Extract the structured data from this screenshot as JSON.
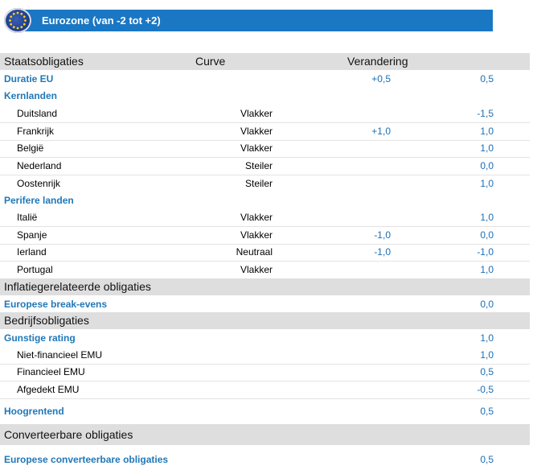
{
  "header": {
    "title": "Eurozone (van -2 tot +2)"
  },
  "columns": {
    "segment": "Staatsobligaties",
    "curve": "Curve",
    "change": "Verandering"
  },
  "rows": {
    "duratie": {
      "name": "Duratie EU",
      "change": "+0,5",
      "value": "0,5"
    },
    "kernlanden": {
      "name": "Kernlanden"
    },
    "duitsland": {
      "name": "Duitsland",
      "curve": "Vlakker",
      "value": "-1,5"
    },
    "frankrijk": {
      "name": "Frankrijk",
      "curve": "Vlakker",
      "change": "+1,0",
      "value": "1,0"
    },
    "belgie": {
      "name": "België",
      "curve": "Vlakker",
      "value": "1,0"
    },
    "nederland": {
      "name": "Nederland",
      "curve": "Steiler",
      "value": "0,0"
    },
    "oostenrijk": {
      "name": "Oostenrijk",
      "curve": "Steiler",
      "value": "1,0"
    },
    "perifere": {
      "name": "Perifere landen"
    },
    "italie": {
      "name": "Italië",
      "curve": "Vlakker",
      "value": "1,0"
    },
    "spanje": {
      "name": "Spanje",
      "curve": "Vlakker",
      "change": "-1,0",
      "value": "0,0"
    },
    "ierland": {
      "name": "Ierland",
      "curve": "Neutraal",
      "change": "-1,0",
      "value": "-1,0"
    },
    "portugal": {
      "name": "Portugal",
      "curve": "Vlakker",
      "value": "1,0"
    },
    "inflatie": {
      "name": "Inflatiegerelateerde obligaties"
    },
    "breakevens": {
      "name": "Europese break-evens",
      "value": "0,0"
    },
    "bedrijfs": {
      "name": "Bedrijfsobligaties"
    },
    "gunstige": {
      "name": "Gunstige  rating",
      "value": "1,0"
    },
    "nietfin": {
      "name": "Niet-financieel EMU",
      "value": "1,0"
    },
    "financieel": {
      "name": "Financieel EMU",
      "value": "0,5"
    },
    "afgedekt": {
      "name": "Afgedekt EMU",
      "value": "-0,5"
    },
    "hoogrentend": {
      "name": "Hoogrentend",
      "value": "0,5"
    },
    "converteerbaar": {
      "name": "Converteerbare obligaties"
    },
    "europconv": {
      "name": "Europese converteerbare  obligaties",
      "value": "0,5"
    }
  },
  "colors": {
    "header_bar": "#1a77c4",
    "category_text": "#1f78b8",
    "value_text": "#1a6eb6",
    "section_shade": "#dedede"
  },
  "icons": {
    "flag": "eu-flag-icon"
  }
}
